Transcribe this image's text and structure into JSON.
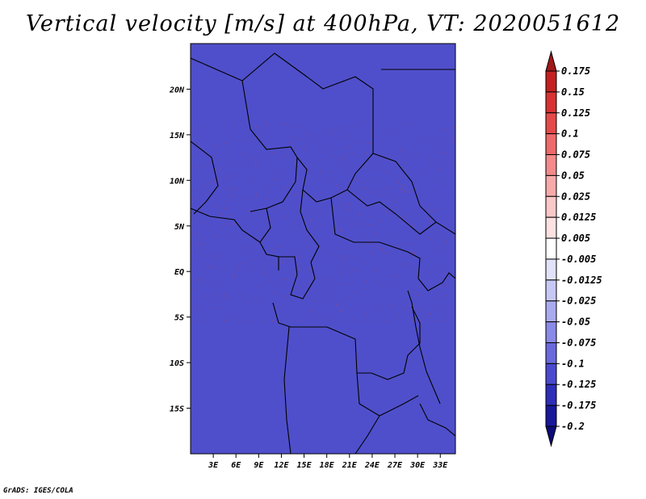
{
  "title": "Vertical velocity [m/s] at 400hPa, VT: 2020051612",
  "credit": "GrADS: IGES/COLA",
  "map": {
    "lat_labels": [
      "20N",
      "15N",
      "10N",
      "5N",
      "EQ",
      "5S",
      "10S",
      "15S"
    ],
    "lat_values": [
      20,
      15,
      10,
      5,
      0,
      -5,
      -10,
      -15
    ],
    "lon_labels": [
      "3E",
      "6E",
      "9E",
      "12E",
      "15E",
      "18E",
      "21E",
      "24E",
      "27E",
      "30E",
      "33E"
    ],
    "lon_values": [
      3,
      6,
      9,
      12,
      15,
      18,
      21,
      24,
      27,
      30,
      33
    ],
    "lon_range": [
      0,
      35
    ],
    "lat_range": [
      -20,
      25
    ]
  },
  "colorbar": {
    "levels": [
      "0.175",
      "0.15",
      "0.125",
      "0.1",
      "0.075",
      "0.05",
      "0.025",
      "0.0125",
      "0.005",
      "-0.005",
      "-0.0125",
      "-0.025",
      "-0.05",
      "-0.075",
      "-0.1",
      "-0.125",
      "-0.175",
      "-0.2"
    ],
    "colors": [
      "#a01818",
      "#c42020",
      "#d83232",
      "#e54a4a",
      "#ee6a6a",
      "#f48a8a",
      "#f8aaaa",
      "#fbc8c8",
      "#fde2e2",
      "#ffffff",
      "#e2e2fb",
      "#c8c8f6",
      "#aaaaf0",
      "#8a8ae8",
      "#6a6adc",
      "#4a4ad0",
      "#2e2eb8",
      "#18189a",
      "#0c0c78"
    ]
  }
}
